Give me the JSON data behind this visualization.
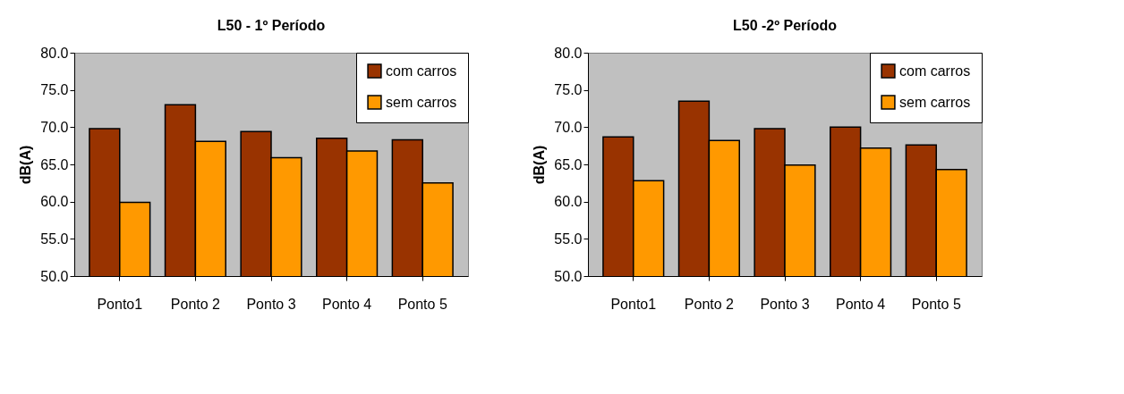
{
  "chart_data": [
    {
      "type": "bar",
      "title": "L50 - 1º Período",
      "ylabel": "dB(A)",
      "categories": [
        "Ponto1",
        "Ponto 2",
        "Ponto 3",
        "Ponto 4",
        "Ponto 5"
      ],
      "series": [
        {
          "name": "com carros",
          "color": "#993300",
          "values": [
            69.8,
            73.0,
            69.4,
            68.5,
            68.3
          ]
        },
        {
          "name": "sem carros",
          "color": "#ff9900",
          "values": [
            59.9,
            68.1,
            65.9,
            66.8,
            62.5
          ]
        }
      ],
      "ylim": [
        50,
        80
      ],
      "yticks": [
        {
          "value": 50,
          "label": "50.0"
        },
        {
          "value": 55,
          "label": "55.0"
        },
        {
          "value": 60,
          "label": "60.0"
        },
        {
          "value": 65,
          "label": "65.0"
        },
        {
          "value": 70,
          "label": "70.0"
        },
        {
          "value": 75,
          "label": "75.0"
        },
        {
          "value": 80,
          "label": "80.0"
        }
      ],
      "grid": false,
      "legend": "top right"
    },
    {
      "type": "bar",
      "title": "L50 -2º Período",
      "ylabel": "dB(A)",
      "categories": [
        "Ponto1",
        "Ponto 2",
        "Ponto 3",
        "Ponto 4",
        "Ponto 5"
      ],
      "series": [
        {
          "name": "com carros",
          "color": "#993300",
          "values": [
            68.7,
            73.5,
            69.8,
            70.0,
            67.6
          ]
        },
        {
          "name": "sem carros",
          "color": "#ff9900",
          "values": [
            62.8,
            68.2,
            64.9,
            67.2,
            64.3
          ]
        }
      ],
      "ylim": [
        50,
        80
      ],
      "yticks": [
        {
          "value": 50,
          "label": "50.0"
        },
        {
          "value": 55,
          "label": "55.0"
        },
        {
          "value": 60,
          "label": "60.0"
        },
        {
          "value": 65,
          "label": "65.0"
        },
        {
          "value": 70,
          "label": "70.0"
        },
        {
          "value": 75,
          "label": "75.0"
        },
        {
          "value": 80,
          "label": "80.0"
        }
      ],
      "grid": false,
      "legend": "top right"
    }
  ]
}
